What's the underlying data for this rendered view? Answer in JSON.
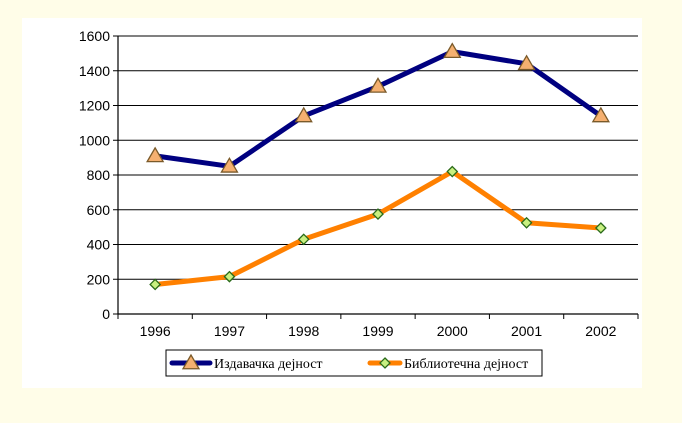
{
  "colors": {
    "page_background": "#fffde8",
    "plot_background": "#ffffff",
    "grid": "#000000",
    "axis": "#000000"
  },
  "chart_data": {
    "type": "line",
    "title": "",
    "xlabel": "",
    "ylabel": "",
    "categories": [
      "1996",
      "1997",
      "1998",
      "1999",
      "2000",
      "2001",
      "2002"
    ],
    "ylim": [
      0,
      1600
    ],
    "yticks": [
      0,
      200,
      400,
      600,
      800,
      1000,
      1200,
      1400,
      1600
    ],
    "grid": true,
    "legend_placement": "bottom",
    "series": [
      {
        "name": "Издавачка дејност",
        "values": [
          910,
          850,
          1140,
          1310,
          1510,
          1440,
          1140
        ],
        "color": "#000080",
        "marker": "triangle",
        "marker_fill": "#f5b070",
        "marker_stroke": "#7a5a2a"
      },
      {
        "name": "Библиотечна дејност",
        "values": [
          170,
          215,
          430,
          575,
          820,
          525,
          495
        ],
        "color": "#ff8000",
        "marker": "diamond",
        "marker_fill": "#c8f080",
        "marker_stroke": "#2a6a1a"
      }
    ]
  }
}
